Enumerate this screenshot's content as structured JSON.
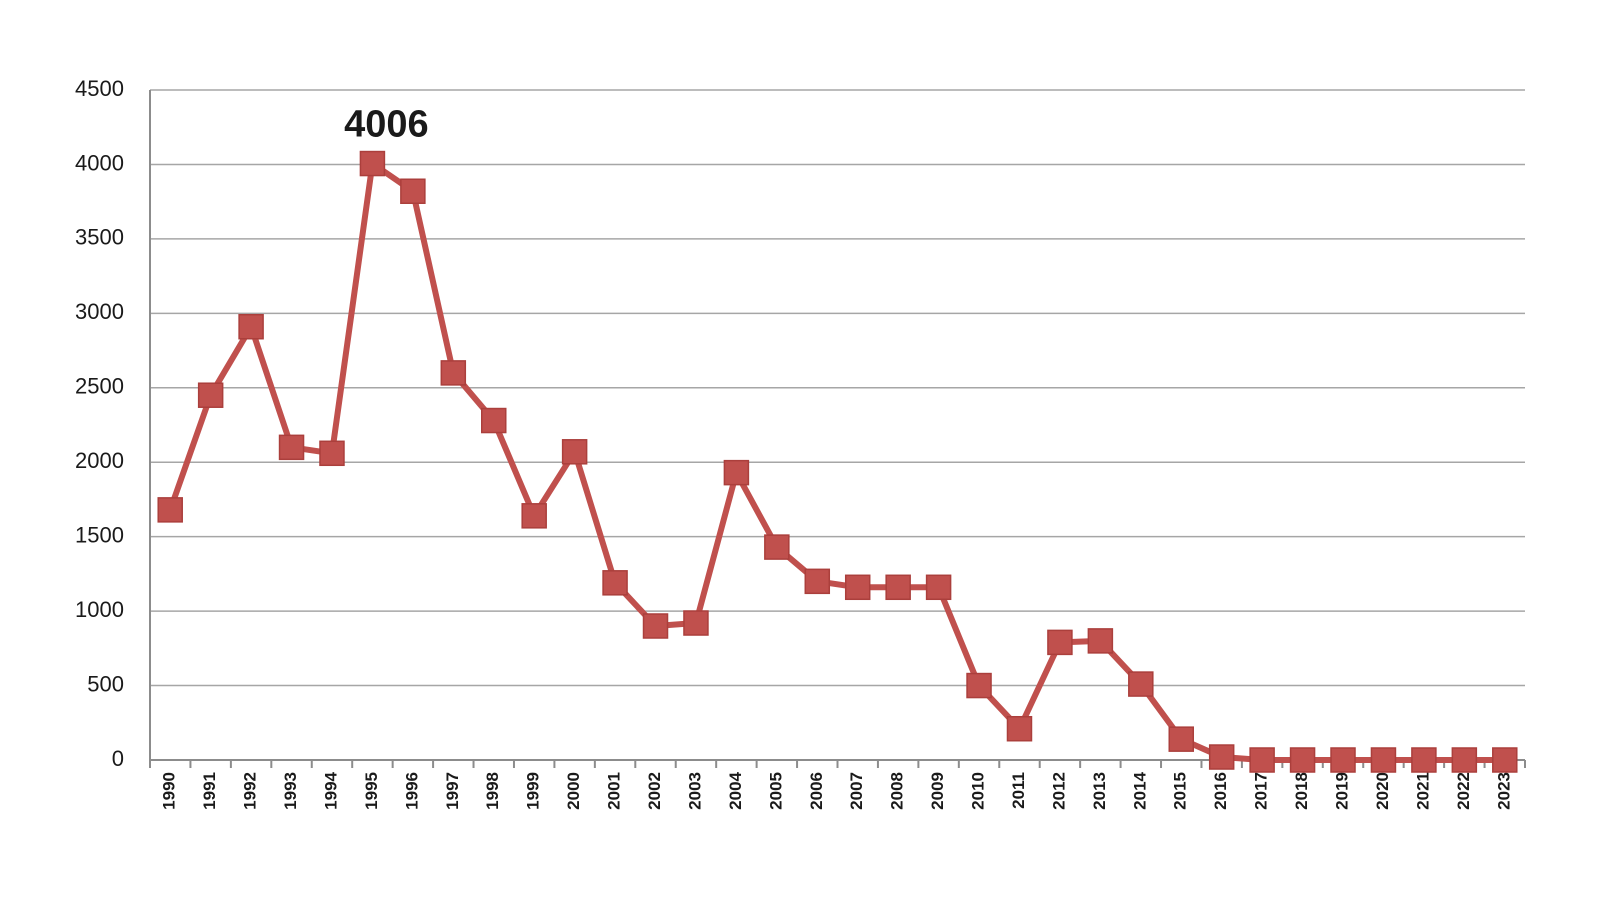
{
  "chart_data": {
    "type": "line",
    "title": "",
    "xlabel": "",
    "ylabel": "",
    "x": [
      "1990",
      "1991",
      "1992",
      "1993",
      "1994",
      "1995",
      "1996",
      "1997",
      "1998",
      "1999",
      "2000",
      "2001",
      "2002",
      "2003",
      "2004",
      "2005",
      "2006",
      "2007",
      "2008",
      "2009",
      "2010",
      "2011",
      "2012",
      "2013",
      "2014",
      "2015",
      "2016",
      "2017",
      "2018",
      "2019",
      "2020",
      "2021",
      "2022",
      "2023"
    ],
    "series": [
      {
        "color": "#c0504d",
        "marker": "square",
        "values": [
          1680,
          2450,
          2910,
          2100,
          2060,
          4006,
          3820,
          2600,
          2280,
          1640,
          2070,
          1190,
          900,
          920,
          1930,
          1430,
          1200,
          1160,
          1160,
          1160,
          500,
          210,
          790,
          800,
          510,
          140,
          20,
          0,
          0,
          0,
          0,
          0,
          0,
          0
        ]
      }
    ],
    "ylim": [
      0,
      4500
    ],
    "yticks": [
      "0",
      "500",
      "1000",
      "1500",
      "2000",
      "2500",
      "3000",
      "3500",
      "4000",
      "4500"
    ],
    "grid": "horizontal",
    "annotations": [
      {
        "x": "1995",
        "text": "4006"
      }
    ]
  }
}
